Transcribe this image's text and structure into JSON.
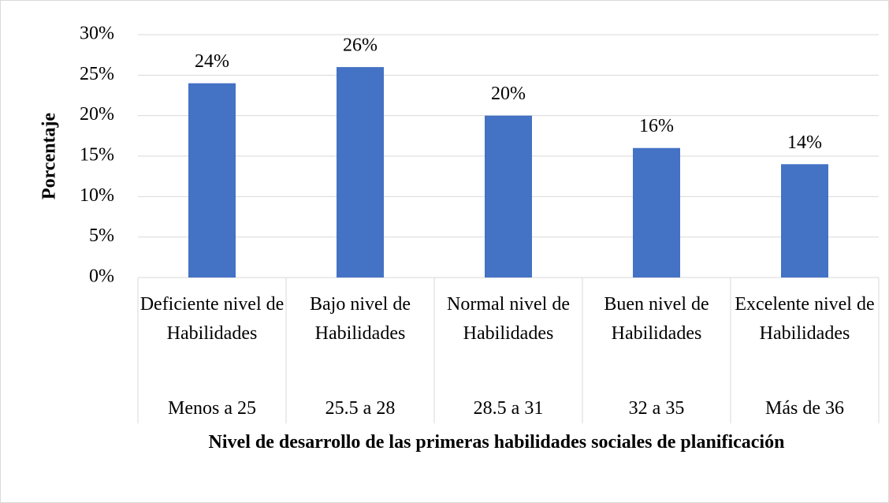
{
  "chart_data": {
    "type": "bar",
    "x_label": "Nivel de desarrollo de las primeras habilidades sociales de planificación",
    "y_label": "Porcentaje",
    "categories": [
      "Deficiente nivel de Habilidades",
      "Bajo nivel de Habilidades",
      "Normal nivel de Habilidades",
      "Buen nivel de Habilidades",
      "Excelente nivel de Habilidades"
    ],
    "category_ranges": [
      "Menos a 25",
      "25.5 a 28",
      "28.5 a 31",
      "32 a 35",
      "Más de 36"
    ],
    "values": [
      24,
      26,
      20,
      16,
      14
    ],
    "value_labels": [
      "24%",
      "26%",
      "20%",
      "16%",
      "14%"
    ],
    "color": "#4472c4",
    "ylim": [
      0,
      30
    ],
    "yticks": [
      {
        "value": 0,
        "label": "0%"
      },
      {
        "value": 5,
        "label": "5%"
      },
      {
        "value": 10,
        "label": "10%"
      },
      {
        "value": 15,
        "label": "15%"
      },
      {
        "value": 20,
        "label": "20%"
      },
      {
        "value": 25,
        "label": "25%"
      },
      {
        "value": 30,
        "label": "30%"
      }
    ],
    "grid": true
  }
}
